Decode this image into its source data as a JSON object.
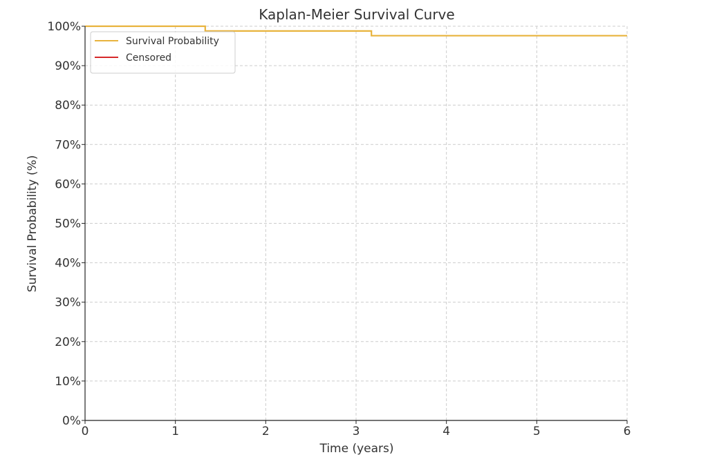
{
  "chart_data": {
    "type": "line",
    "title": "Kaplan-Meier Survival Curve",
    "xlabel": "Time (years)",
    "ylabel": "Survival Probability (%)",
    "xlim": [
      0,
      6
    ],
    "ylim": [
      0,
      100
    ],
    "x_ticks": [
      "0",
      "1",
      "2",
      "3",
      "4",
      "5",
      "6"
    ],
    "y_ticks": [
      "0%",
      "10%",
      "20%",
      "30%",
      "40%",
      "50%",
      "60%",
      "70%",
      "80%",
      "90%",
      "100%"
    ],
    "grid": true,
    "legend_position": "top-left",
    "series": [
      {
        "name": "Survival Probability",
        "color": "#e8b33c",
        "step": true,
        "x": [
          0,
          1.33,
          1.33,
          3.17,
          3.17,
          6
        ],
        "y": [
          100,
          100,
          98.8,
          98.8,
          97.6,
          97.6
        ]
      },
      {
        "name": "Censored",
        "color": "#d62728",
        "x": [],
        "y": []
      }
    ]
  }
}
